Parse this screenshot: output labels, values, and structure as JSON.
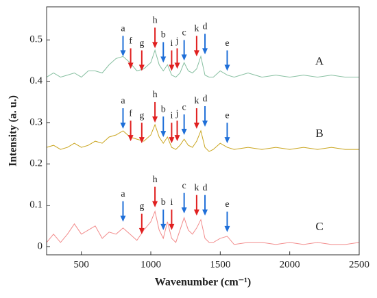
{
  "chart_data": {
    "type": "line",
    "xlabel": "Wavenumber (cm⁻¹)",
    "ylabel": "Intensity (a. u.)",
    "xlim": [
      250,
      2500
    ],
    "ylim": [
      -0.02,
      0.58
    ],
    "xticks": [
      500,
      1000,
      1500,
      2000,
      2500
    ],
    "yticks": [
      0,
      0.1,
      0.2,
      0.3,
      0.4,
      0.5
    ],
    "x": [
      250,
      300,
      350,
      400,
      450,
      500,
      550,
      600,
      650,
      700,
      750,
      800,
      850,
      900,
      950,
      1000,
      1030,
      1060,
      1090,
      1120,
      1150,
      1180,
      1210,
      1240,
      1270,
      1300,
      1330,
      1360,
      1390,
      1420,
      1450,
      1500,
      1550,
      1600,
      1700,
      1800,
      1900,
      2000,
      2100,
      2200,
      2300,
      2400,
      2500
    ],
    "series": [
      {
        "name": "A",
        "color": "#86bfa0",
        "values": [
          0.41,
          0.42,
          0.41,
          0.415,
          0.42,
          0.41,
          0.425,
          0.425,
          0.42,
          0.44,
          0.455,
          0.46,
          0.445,
          0.425,
          0.43,
          0.445,
          0.475,
          0.44,
          0.425,
          0.44,
          0.415,
          0.41,
          0.42,
          0.445,
          0.425,
          0.42,
          0.43,
          0.46,
          0.415,
          0.41,
          0.41,
          0.425,
          0.415,
          0.41,
          0.42,
          0.41,
          0.415,
          0.41,
          0.415,
          0.41,
          0.415,
          0.41,
          0.41
        ]
      },
      {
        "name": "B",
        "color": "#c9a41c",
        "values": [
          0.24,
          0.245,
          0.235,
          0.24,
          0.25,
          0.24,
          0.245,
          0.255,
          0.25,
          0.265,
          0.27,
          0.28,
          0.265,
          0.26,
          0.255,
          0.27,
          0.295,
          0.265,
          0.25,
          0.265,
          0.24,
          0.235,
          0.245,
          0.26,
          0.245,
          0.24,
          0.255,
          0.28,
          0.24,
          0.23,
          0.235,
          0.25,
          0.24,
          0.235,
          0.24,
          0.235,
          0.24,
          0.235,
          0.24,
          0.235,
          0.24,
          0.235,
          0.235
        ]
      },
      {
        "name": "C",
        "color": "#f28b8b",
        "values": [
          0.01,
          0.03,
          0.01,
          0.03,
          0.055,
          0.03,
          0.04,
          0.05,
          0.02,
          0.035,
          0.03,
          0.045,
          0.03,
          0.015,
          0.04,
          0.06,
          0.085,
          0.04,
          0.02,
          0.06,
          0.02,
          0.01,
          0.04,
          0.07,
          0.04,
          0.03,
          0.045,
          0.065,
          0.02,
          0.01,
          0.01,
          0.02,
          0.025,
          0.005,
          0.01,
          0.01,
          0.005,
          0.01,
          0.005,
          0.01,
          0.005,
          0.005,
          0.01
        ]
      }
    ],
    "annotations": [
      {
        "text": "a",
        "x": 800,
        "y": 0.455,
        "color": "#1f6fd8"
      },
      {
        "text": "f",
        "x": 855,
        "y": 0.425,
        "color": "#e02020"
      },
      {
        "text": "g",
        "x": 935,
        "y": 0.42,
        "color": "#e02020"
      },
      {
        "text": "h",
        "x": 1030,
        "y": 0.475,
        "color": "#e02020"
      },
      {
        "text": "b",
        "x": 1090,
        "y": 0.44,
        "color": "#1f6fd8"
      },
      {
        "text": "i",
        "x": 1150,
        "y": 0.42,
        "color": "#e02020"
      },
      {
        "text": "j",
        "x": 1190,
        "y": 0.425,
        "color": "#e02020"
      },
      {
        "text": "c",
        "x": 1240,
        "y": 0.445,
        "color": "#1f6fd8"
      },
      {
        "text": "k",
        "x": 1330,
        "y": 0.455,
        "color": "#e02020"
      },
      {
        "text": "d",
        "x": 1390,
        "y": 0.46,
        "color": "#1f6fd8"
      },
      {
        "text": "e",
        "x": 1550,
        "y": 0.42,
        "color": "#1f6fd8"
      },
      {
        "text": "a",
        "x": 800,
        "y": 0.28,
        "color": "#1f6fd8"
      },
      {
        "text": "f",
        "x": 855,
        "y": 0.25,
        "color": "#e02020"
      },
      {
        "text": "g",
        "x": 935,
        "y": 0.245,
        "color": "#e02020"
      },
      {
        "text": "h",
        "x": 1030,
        "y": 0.295,
        "color": "#e02020"
      },
      {
        "text": "b",
        "x": 1090,
        "y": 0.26,
        "color": "#1f6fd8"
      },
      {
        "text": "i",
        "x": 1150,
        "y": 0.245,
        "color": "#e02020"
      },
      {
        "text": "j",
        "x": 1190,
        "y": 0.25,
        "color": "#e02020"
      },
      {
        "text": "c",
        "x": 1240,
        "y": 0.265,
        "color": "#1f6fd8"
      },
      {
        "text": "k",
        "x": 1330,
        "y": 0.28,
        "color": "#e02020"
      },
      {
        "text": "d",
        "x": 1390,
        "y": 0.285,
        "color": "#1f6fd8"
      },
      {
        "text": "e",
        "x": 1550,
        "y": 0.245,
        "color": "#1f6fd8"
      },
      {
        "text": "a",
        "x": 800,
        "y": 0.055,
        "color": "#1f6fd8"
      },
      {
        "text": "g",
        "x": 935,
        "y": 0.025,
        "color": "#e02020"
      },
      {
        "text": "h",
        "x": 1030,
        "y": 0.09,
        "color": "#e02020"
      },
      {
        "text": "b",
        "x": 1090,
        "y": 0.035,
        "color": "#1f6fd8"
      },
      {
        "text": "i",
        "x": 1150,
        "y": 0.035,
        "color": "#e02020"
      },
      {
        "text": "c",
        "x": 1240,
        "y": 0.075,
        "color": "#1f6fd8"
      },
      {
        "text": "k",
        "x": 1330,
        "y": 0.07,
        "color": "#e02020"
      },
      {
        "text": "d",
        "x": 1390,
        "y": 0.07,
        "color": "#1f6fd8"
      },
      {
        "text": "e",
        "x": 1550,
        "y": 0.03,
        "color": "#1f6fd8"
      }
    ]
  }
}
